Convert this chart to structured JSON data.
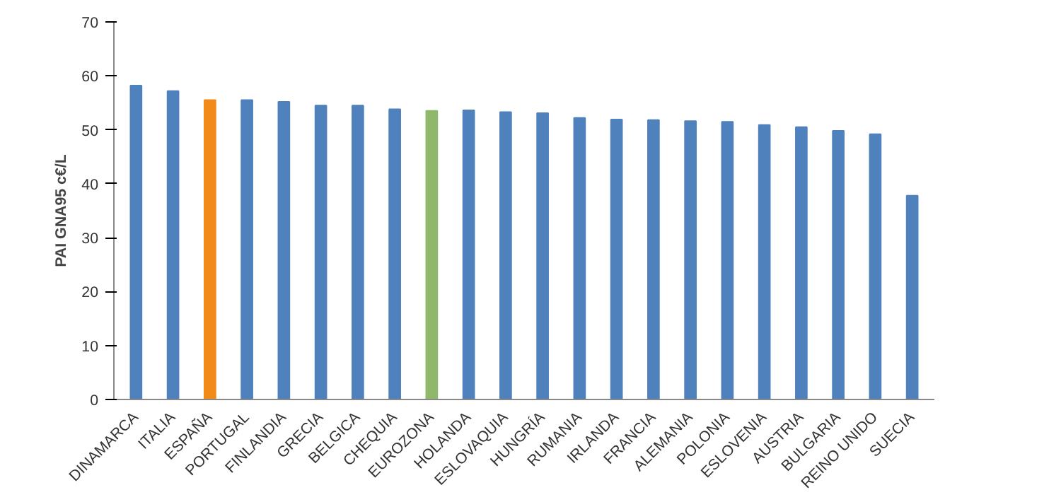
{
  "chart_data": {
    "type": "bar",
    "ylabel": "PAI GNA95 c€/L",
    "categories": [
      "DINAMARCA",
      "ITALIA",
      "ESPAÑA",
      "PORTUGAL",
      "FINLANDIA",
      "GRECIA",
      "BELGICA",
      "CHEQUIA",
      "EUROZONA",
      "HOLANDA",
      "ESLOVAQUIA",
      "HUNGRÍA",
      "RUMANIA",
      "IRLANDA",
      "FRANCIA",
      "ALEMANIA",
      "POLONIA",
      "ESLOVENIA",
      "AUSTRIA",
      "BULGARIA",
      "REINO UNIDO",
      "SUECIA"
    ],
    "values": [
      58.2,
      57.2,
      55.5,
      55.5,
      55.2,
      54.5,
      54.5,
      53.8,
      53.5,
      53.6,
      53.3,
      53.1,
      52.2,
      51.9,
      51.8,
      51.6,
      51.5,
      50.9,
      50.5,
      49.8,
      49.2,
      37.8
    ],
    "colors": [
      "#4f81bd",
      "#4f81bd",
      "#f28a1a",
      "#4f81bd",
      "#4f81bd",
      "#4f81bd",
      "#4f81bd",
      "#4f81bd",
      "#8fb86a",
      "#4f81bd",
      "#4f81bd",
      "#4f81bd",
      "#4f81bd",
      "#4f81bd",
      "#4f81bd",
      "#4f81bd",
      "#4f81bd",
      "#4f81bd",
      "#4f81bd",
      "#4f81bd",
      "#4f81bd",
      "#4f81bd"
    ],
    "ylim": [
      0,
      70
    ],
    "yticks": [
      0,
      10,
      20,
      30,
      40,
      50,
      60,
      70
    ],
    "grid": false
  }
}
